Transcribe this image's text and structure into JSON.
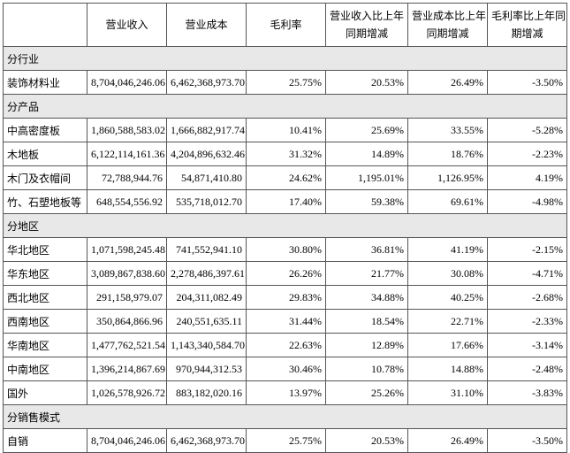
{
  "table": {
    "header": [
      [
        "营业收入"
      ],
      [
        "营业成本"
      ],
      [
        "毛利率"
      ],
      [
        "营业收入比上年",
        "同期增减"
      ],
      [
        "营业成本比上年",
        "同期增减"
      ],
      [
        "毛利率比上年同",
        "期增减"
      ]
    ],
    "sections": [
      {
        "title": "分行业",
        "rows": [
          {
            "name": "装饰材料业",
            "cells": [
              "8,704,046,246.06",
              "6,462,368,973.70",
              "25.75%",
              "20.53%",
              "26.49%",
              "-3.50%"
            ]
          }
        ]
      },
      {
        "title": "分产品",
        "rows": [
          {
            "name": "中高密度板",
            "cells": [
              "1,860,588,583.02",
              "1,666,882,917.74",
              "10.41%",
              "25.69%",
              "33.55%",
              "-5.28%"
            ]
          },
          {
            "name": "木地板",
            "cells": [
              "6,122,114,161.36",
              "4,204,896,632.46",
              "31.32%",
              "14.89%",
              "18.76%",
              "-2.23%"
            ]
          },
          {
            "name": "木门及衣帽间",
            "cells": [
              "72,788,944.76",
              "54,871,410.80",
              "24.62%",
              "1,195.01%",
              "1,126.95%",
              "4.19%"
            ]
          },
          {
            "name": "竹、石塑地板等",
            "cells": [
              "648,554,556.92",
              "535,718,012.70",
              "17.40%",
              "59.38%",
              "69.61%",
              "-4.98%"
            ]
          }
        ]
      },
      {
        "title": "分地区",
        "rows": [
          {
            "name": "华北地区",
            "cells": [
              "1,071,598,245.48",
              "741,552,941.10",
              "30.80%",
              "36.81%",
              "41.19%",
              "-2.15%"
            ]
          },
          {
            "name": "华东地区",
            "cells": [
              "3,089,867,838.60",
              "2,278,486,397.61",
              "26.26%",
              "21.77%",
              "30.08%",
              "-4.71%"
            ]
          },
          {
            "name": "西北地区",
            "cells": [
              "291,158,979.07",
              "204,311,082.49",
              "29.83%",
              "34.88%",
              "40.25%",
              "-2.68%"
            ]
          },
          {
            "name": "西南地区",
            "cells": [
              "350,864,866.96",
              "240,551,635.11",
              "31.44%",
              "18.54%",
              "22.71%",
              "-2.33%"
            ]
          },
          {
            "name": "华南地区",
            "cells": [
              "1,477,762,521.54",
              "1,143,340,584.70",
              "22.63%",
              "12.89%",
              "17.66%",
              "-3.14%"
            ]
          },
          {
            "name": "中南地区",
            "cells": [
              "1,396,214,867.69",
              "970,944,312.53",
              "30.46%",
              "10.78%",
              "14.88%",
              "-2.48%"
            ]
          },
          {
            "name": "国外",
            "cells": [
              "1,026,578,926.72",
              "883,182,020.16",
              "13.97%",
              "25.26%",
              "31.10%",
              "-3.83%"
            ]
          }
        ]
      },
      {
        "title": "分销售模式",
        "rows": [
          {
            "name": "自销",
            "cells": [
              "8,704,046,246.06",
              "6,462,368,973.70",
              "25.75%",
              "20.53%",
              "26.49%",
              "-3.50%"
            ]
          }
        ]
      }
    ]
  }
}
